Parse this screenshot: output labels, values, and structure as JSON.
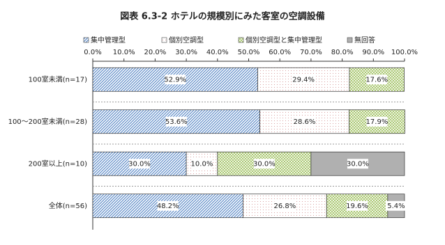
{
  "chart_data": {
    "type": "stacked-bar-horizontal",
    "title": "図表 6.3-2 ホテルの規模別にみた客室の空調設備",
    "categories": [
      "100室未満(n=17)",
      "100～200室未満(n=28)",
      "200室以上(n=10)",
      "全体(n=56)"
    ],
    "series": [
      {
        "name": "集中管理型",
        "color": "#5b8ac8",
        "values": [
          52.9,
          53.6,
          30.0,
          48.2
        ],
        "value_labels": [
          "52.9%",
          "53.6%",
          "30.0%",
          "48.2%"
        ]
      },
      {
        "name": "個別空調型",
        "color": "#d9a0a0",
        "values": [
          29.4,
          28.6,
          10.0,
          26.8
        ],
        "value_labels": [
          "29.4%",
          "28.6%",
          "10.0%",
          "26.8%"
        ]
      },
      {
        "name": "個別空調型と集中管理型",
        "color": "#9cbf5a",
        "values": [
          17.6,
          17.9,
          30.0,
          19.6
        ],
        "value_labels": [
          "17.6%",
          "17.9%",
          "30.0%",
          "19.6%"
        ]
      },
      {
        "name": "無回答",
        "color": "#b0b0b0",
        "values": [
          null,
          null,
          30.0,
          5.4
        ],
        "value_labels": [
          null,
          null,
          "30.0%",
          "5.4%"
        ]
      }
    ],
    "xlim": [
      0,
      100
    ],
    "xticks": [
      {
        "value": 0,
        "label": "0.0%"
      },
      {
        "value": 10,
        "label": "10.0%"
      },
      {
        "value": 20,
        "label": "20.0%"
      },
      {
        "value": 30,
        "label": "30.0%"
      },
      {
        "value": 40,
        "label": "40.0%"
      },
      {
        "value": 50,
        "label": "50.0%"
      },
      {
        "value": 60,
        "label": "60.0%"
      },
      {
        "value": 70,
        "label": "70.0%"
      },
      {
        "value": 80,
        "label": "80.0%"
      },
      {
        "value": 90,
        "label": "90.0%"
      },
      {
        "value": 100,
        "label": "100.0%"
      }
    ]
  }
}
